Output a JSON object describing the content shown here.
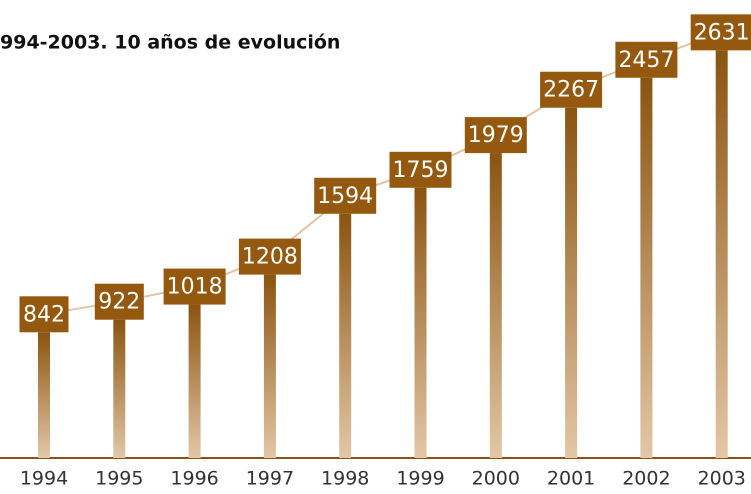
{
  "chart_data": {
    "type": "bar",
    "title": "994-2003. 10 años de evolución",
    "categories": [
      "1994",
      "1995",
      "1996",
      "1997",
      "1998",
      "1999",
      "2000",
      "2001",
      "2002",
      "2003"
    ],
    "values": [
      842,
      922,
      1018,
      1208,
      1594,
      1759,
      1979,
      2267,
      2457,
      2631
    ],
    "color": "#94580f"
  }
}
